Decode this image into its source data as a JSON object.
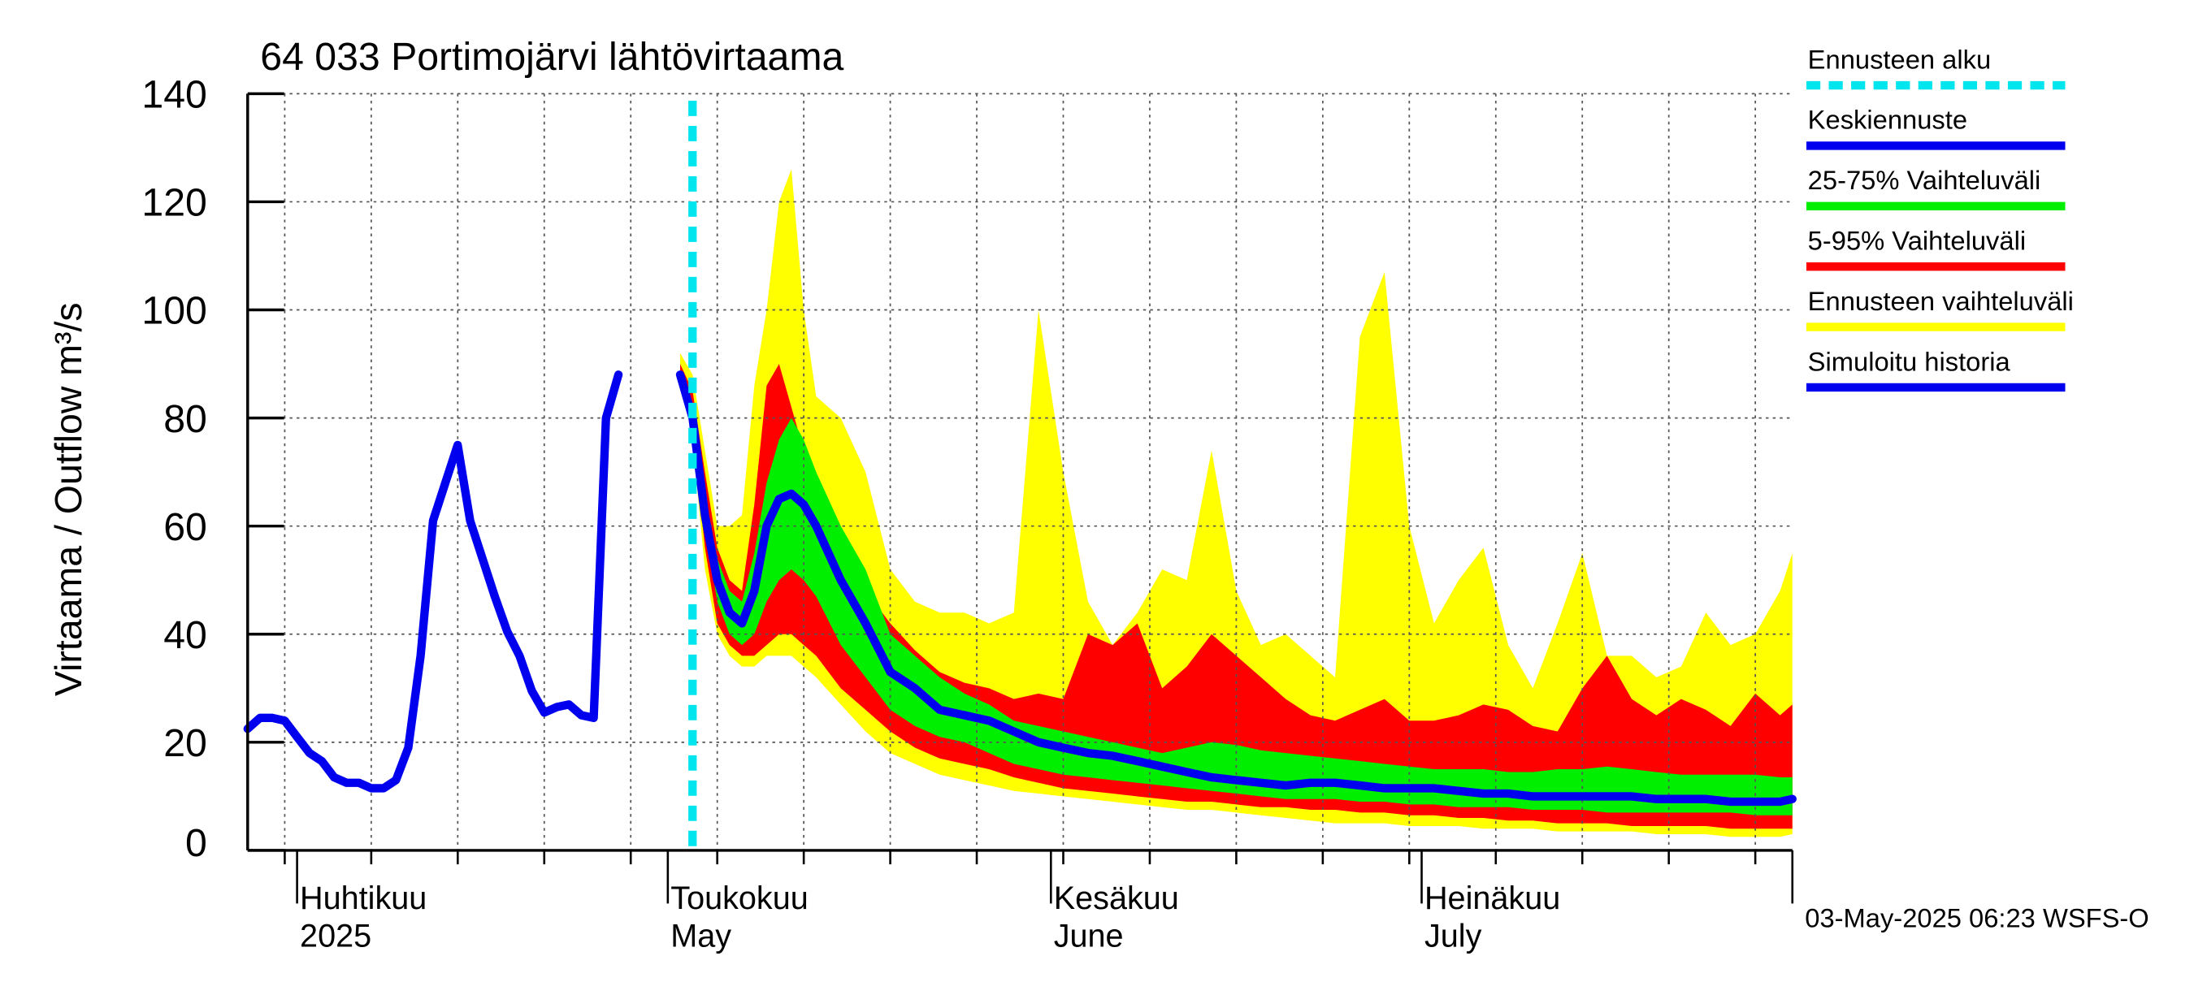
{
  "title": "64 033 Portimojärvi lähtövirtaama",
  "ylabel": "Virtaama / Outflow    m³/s",
  "footer": "03-May-2025 06:23 WSFS-O",
  "colors": {
    "forecast_start": "#00e5ee",
    "mean": "#0000ee",
    "band_25_75": "#00ee00",
    "band_5_95": "#ff0000",
    "band_full": "#ffff00",
    "history": "#0000ee",
    "grid": "#555555"
  },
  "legend": [
    {
      "label": "Ennusteen alku",
      "color": "#00e5ee",
      "style": "dashed",
      "key": "forecast_start"
    },
    {
      "label": "Keskiennuste",
      "color": "#0000ee",
      "style": "solid",
      "key": "mean"
    },
    {
      "label": "25-75% Vaihteluväli",
      "color": "#00ee00",
      "style": "solid",
      "key": "band_25_75"
    },
    {
      "label": "5-95% Vaihteluväli",
      "color": "#ff0000",
      "style": "solid",
      "key": "band_5_95"
    },
    {
      "label": "Ennusteen vaihteluväli",
      "color": "#ffff00",
      "style": "solid",
      "key": "band_full"
    },
    {
      "label": "Simuloitu historia",
      "color": "#0000ee",
      "style": "solid",
      "key": "history"
    }
  ],
  "chart_data": {
    "type": "area",
    "title": "64 033 Portimojärvi lähtövirtaama",
    "ylabel": "Virtaama / Outflow    m³/s",
    "xlabel": "",
    "ylim": [
      0,
      140
    ],
    "xlim": [
      "2025-03-28",
      "2025-07-31"
    ],
    "yticks": [
      0,
      20,
      40,
      60,
      80,
      100,
      120,
      140
    ],
    "grid": true,
    "legend_position": "right",
    "forecast_start": "2025-05-03",
    "month_labels": [
      {
        "date": "2025-04-01",
        "line1": "Huhtikuu",
        "line2": "2025"
      },
      {
        "date": "2025-05-01",
        "line1": "Toukokuu",
        "line2": "May"
      },
      {
        "date": "2025-06-01",
        "line1": "Kesäkuu",
        "line2": "June"
      },
      {
        "date": "2025-07-01",
        "line1": "Heinäkuu",
        "line2": "July"
      }
    ],
    "history": {
      "name": "Simuloitu historia",
      "x": [
        "2025-03-28",
        "2025-03-29",
        "2025-03-30",
        "2025-03-31",
        "2025-04-01",
        "2025-04-02",
        "2025-04-03",
        "2025-04-04",
        "2025-04-05",
        "2025-04-06",
        "2025-04-07",
        "2025-04-08",
        "2025-04-09",
        "2025-04-10",
        "2025-04-11",
        "2025-04-12",
        "2025-04-13",
        "2025-04-14",
        "2025-04-15",
        "2025-04-16",
        "2025-04-17",
        "2025-04-18",
        "2025-04-19",
        "2025-04-20",
        "2025-04-21",
        "2025-04-22",
        "2025-04-23",
        "2025-04-24",
        "2025-04-25",
        "2025-04-26",
        "2025-04-27",
        "2025-04-28",
        "2025-04-29",
        "2025-04-30",
        "2025-05-01",
        "2025-05-02",
        "2025-05-03"
      ],
      "y": [
        22.5,
        24.5,
        24.5,
        24,
        21,
        18,
        16.5,
        13.5,
        12.5,
        12.5,
        11.5,
        11.5,
        13,
        19,
        36,
        61,
        68,
        75,
        61,
        54,
        47,
        40.5,
        36,
        29.5,
        25.5,
        26.5,
        27,
        25,
        24.5,
        80,
        88,
        null,
        null,
        null,
        null,
        null,
        null
      ]
    },
    "forecast": {
      "x": [
        "2025-05-02",
        "2025-05-03",
        "2025-05-04",
        "2025-05-05",
        "2025-05-06",
        "2025-05-07",
        "2025-05-08",
        "2025-05-09",
        "2025-05-10",
        "2025-05-11",
        "2025-05-12",
        "2025-05-13",
        "2025-05-15",
        "2025-05-17",
        "2025-05-19",
        "2025-05-21",
        "2025-05-23",
        "2025-05-25",
        "2025-05-27",
        "2025-05-29",
        "2025-05-31",
        "2025-06-02",
        "2025-06-04",
        "2025-06-06",
        "2025-06-08",
        "2025-06-10",
        "2025-06-12",
        "2025-06-14",
        "2025-06-16",
        "2025-06-18",
        "2025-06-20",
        "2025-06-22",
        "2025-06-24",
        "2025-06-26",
        "2025-06-28",
        "2025-06-30",
        "2025-07-02",
        "2025-07-04",
        "2025-07-06",
        "2025-07-08",
        "2025-07-10",
        "2025-07-12",
        "2025-07-14",
        "2025-07-16",
        "2025-07-18",
        "2025-07-20",
        "2025-07-22",
        "2025-07-24",
        "2025-07-26",
        "2025-07-28",
        "2025-07-30",
        "2025-07-31"
      ],
      "mean": [
        88,
        80,
        62,
        50,
        44,
        42,
        48,
        60,
        65,
        66,
        64,
        60,
        50,
        42,
        33,
        30,
        26,
        25,
        24,
        22,
        20,
        19,
        18,
        17.5,
        16.5,
        15.5,
        14.5,
        13.5,
        13,
        12.5,
        12,
        12.5,
        12.5,
        12,
        11.5,
        11.5,
        11.5,
        11,
        10.5,
        10.5,
        10,
        10,
        10,
        10,
        10,
        9.5,
        9.5,
        9.5,
        9,
        9,
        9,
        9.5
      ],
      "p25": [
        88,
        80,
        60,
        46,
        40,
        38,
        40,
        46,
        50,
        52,
        50,
        47,
        38,
        32,
        26,
        23,
        21,
        20,
        18,
        16,
        15,
        14,
        13.5,
        13,
        12.5,
        12,
        11.5,
        11,
        10.5,
        10,
        9.5,
        9.5,
        9.5,
        9,
        9,
        8.5,
        8.5,
        8,
        8,
        8,
        7.5,
        7.5,
        7.5,
        7,
        7,
        7,
        7,
        7,
        7,
        6.5,
        6.5,
        6.5
      ],
      "p75": [
        88,
        82,
        66,
        54,
        48,
        46,
        55,
        68,
        76,
        80,
        76,
        70,
        60,
        52,
        40,
        36,
        32,
        29,
        27,
        24,
        23,
        22,
        21,
        20,
        19,
        18,
        19,
        20,
        19.5,
        18.5,
        18,
        17.5,
        17,
        16.5,
        16,
        15.5,
        15,
        15,
        15,
        14.5,
        14.5,
        15,
        15,
        15.5,
        15,
        14.5,
        14,
        14,
        14,
        14,
        13.5,
        13.5
      ],
      "p05": [
        88,
        78,
        56,
        42,
        38,
        36,
        36,
        38,
        40,
        40,
        38,
        36,
        30,
        26,
        22,
        19,
        17,
        16,
        15,
        13.5,
        12.5,
        11.5,
        11,
        10.5,
        10,
        9.5,
        9,
        9,
        8.5,
        8,
        8,
        7.5,
        7.5,
        7,
        7,
        6.5,
        6.5,
        6,
        6,
        5.5,
        5.5,
        5,
        5,
        5,
        4.5,
        4.5,
        4.5,
        4.5,
        4,
        4,
        4,
        4
      ],
      "p95": [
        90,
        85,
        70,
        56,
        50,
        48,
        64,
        86,
        90,
        82,
        74,
        64,
        58,
        48,
        42,
        37,
        33,
        31,
        30,
        28,
        29,
        28,
        40,
        38,
        42,
        30,
        34,
        40,
        36,
        32,
        28,
        25,
        24,
        26,
        28,
        24,
        24,
        25,
        27,
        26,
        23,
        22,
        30,
        36,
        28,
        25,
        28,
        26,
        23,
        29,
        25,
        27
      ],
      "min": [
        88,
        76,
        52,
        40,
        36,
        34,
        34,
        36,
        36,
        36,
        34,
        32,
        27,
        22,
        18,
        16,
        14,
        13,
        12,
        11,
        10.5,
        10,
        9.5,
        9,
        8.5,
        8,
        7.5,
        7.5,
        7,
        6.5,
        6,
        5.5,
        5,
        5,
        5,
        4.5,
        4.5,
        4.5,
        4,
        4,
        4,
        3.5,
        3.5,
        3.5,
        3.5,
        3,
        3,
        3,
        2.5,
        2.5,
        2.5,
        3
      ],
      "max": [
        92,
        88,
        74,
        60,
        60,
        62,
        86,
        100,
        120,
        126,
        100,
        84,
        80,
        70,
        52,
        46,
        44,
        44,
        42,
        44,
        100,
        70,
        46,
        38,
        44,
        52,
        50,
        74,
        48,
        38,
        40,
        36,
        32,
        95,
        107,
        60,
        42,
        50,
        56,
        38,
        30,
        42,
        55,
        36,
        36,
        32,
        34,
        44,
        38,
        40,
        48,
        55
      ]
    }
  }
}
